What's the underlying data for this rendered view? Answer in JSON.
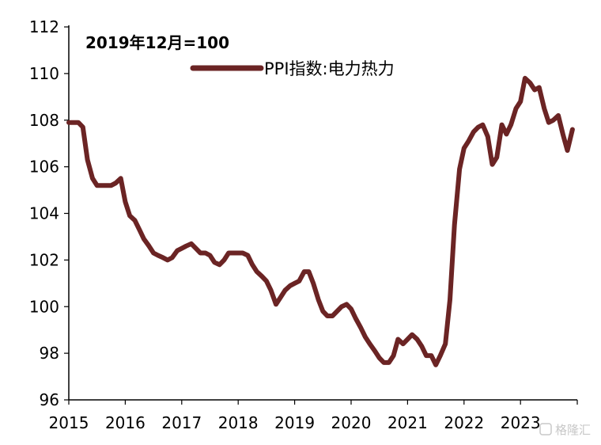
{
  "chart_data": {
    "type": "line",
    "annotation": "2019年12月=100",
    "ylim": [
      96,
      112
    ],
    "y_ticks": [
      96,
      98,
      100,
      102,
      104,
      106,
      108,
      110,
      112
    ],
    "x_ticks": [
      "2015",
      "2016",
      "2017",
      "2018",
      "2019",
      "2020",
      "2021",
      "2022",
      "2023"
    ],
    "xlim": [
      2015.0,
      2023.92
    ],
    "legend_position": "top",
    "grid": false,
    "series": [
      {
        "name": "PPI指数:电力热力",
        "color": "#6b2424",
        "x": [
          2015.0,
          2015.08,
          2015.17,
          2015.25,
          2015.33,
          2015.42,
          2015.5,
          2015.58,
          2015.67,
          2015.75,
          2015.83,
          2015.92,
          2016.0,
          2016.08,
          2016.17,
          2016.25,
          2016.33,
          2016.42,
          2016.5,
          2016.58,
          2016.67,
          2016.75,
          2016.83,
          2016.92,
          2017.0,
          2017.08,
          2017.17,
          2017.25,
          2017.33,
          2017.42,
          2017.5,
          2017.58,
          2017.67,
          2017.75,
          2017.83,
          2017.92,
          2018.0,
          2018.08,
          2018.17,
          2018.25,
          2018.33,
          2018.42,
          2018.5,
          2018.58,
          2018.67,
          2018.75,
          2018.83,
          2018.92,
          2019.0,
          2019.08,
          2019.17,
          2019.25,
          2019.33,
          2019.42,
          2019.5,
          2019.58,
          2019.67,
          2019.75,
          2019.83,
          2019.92,
          2020.0,
          2020.08,
          2020.17,
          2020.25,
          2020.33,
          2020.42,
          2020.5,
          2020.58,
          2020.67,
          2020.75,
          2020.83,
          2020.92,
          2021.0,
          2021.08,
          2021.17,
          2021.25,
          2021.33,
          2021.42,
          2021.5,
          2021.58,
          2021.67,
          2021.75,
          2021.83,
          2021.92,
          2022.0,
          2022.08,
          2022.17,
          2022.25,
          2022.33,
          2022.42,
          2022.5,
          2022.58,
          2022.67,
          2022.75,
          2022.83,
          2022.92,
          2023.0,
          2023.08,
          2023.17,
          2023.25,
          2023.33,
          2023.42,
          2023.5,
          2023.58,
          2023.67,
          2023.75,
          2023.83,
          2023.92
        ],
        "values": [
          107.9,
          107.9,
          107.9,
          107.7,
          106.3,
          105.5,
          105.2,
          105.2,
          105.2,
          105.2,
          105.3,
          105.5,
          104.5,
          103.9,
          103.7,
          103.3,
          102.9,
          102.6,
          102.3,
          102.2,
          102.1,
          102.0,
          102.1,
          102.4,
          102.5,
          102.6,
          102.7,
          102.5,
          102.3,
          102.3,
          102.2,
          101.9,
          101.8,
          102.0,
          102.3,
          102.3,
          102.3,
          102.3,
          102.2,
          101.8,
          101.5,
          101.3,
          101.1,
          100.7,
          100.1,
          100.4,
          100.7,
          100.9,
          101.0,
          101.1,
          101.5,
          101.5,
          101.0,
          100.3,
          99.8,
          99.6,
          99.6,
          99.8,
          100.0,
          100.1,
          99.9,
          99.5,
          99.1,
          98.7,
          98.4,
          98.1,
          97.8,
          97.6,
          97.6,
          97.9,
          98.6,
          98.4,
          98.6,
          98.8,
          98.6,
          98.3,
          97.9,
          97.9,
          97.5,
          97.9,
          98.4,
          100.3,
          103.5,
          105.9,
          106.8,
          107.1,
          107.5,
          107.7,
          107.8,
          107.3,
          106.1,
          106.4,
          107.8,
          107.4,
          107.8,
          108.5,
          108.8,
          109.8,
          109.6,
          109.3,
          109.4,
          108.5,
          107.9,
          108.0,
          108.2,
          107.4,
          106.7,
          107.6
        ]
      }
    ]
  },
  "watermark": "格隆汇"
}
